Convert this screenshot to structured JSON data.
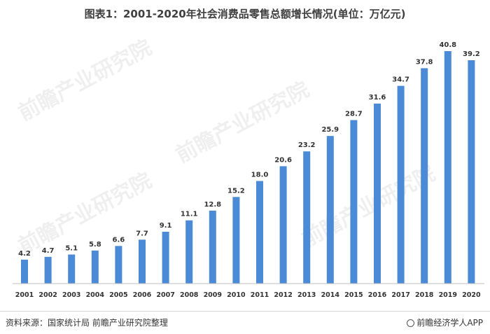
{
  "watermark": "前瞻产业研究院",
  "chart_data": {
    "type": "bar",
    "title": "图表1：2001-2020年社会消费品零售总额增长情况(单位：万亿元)",
    "xlabel": "",
    "ylabel": "",
    "unit": "万亿元",
    "categories": [
      "2001",
      "2002",
      "2003",
      "2004",
      "2005",
      "2006",
      "2007",
      "2008",
      "2009",
      "2010",
      "2011",
      "2012",
      "2013",
      "2014",
      "2015",
      "2016",
      "2017",
      "2018",
      "2019",
      "2020"
    ],
    "values": [
      4.2,
      4.7,
      5.1,
      5.8,
      6.6,
      7.7,
      9.1,
      11.1,
      12.8,
      15.2,
      18.0,
      20.6,
      23.2,
      25.9,
      28.7,
      31.6,
      34.7,
      37.8,
      40.8,
      39.2
    ],
    "value_labels": [
      "4.2",
      "4.7",
      "5.1",
      "5.8",
      "6.6",
      "7.7",
      "9.1",
      "11.1",
      "12.8",
      "15.2",
      "18.0",
      "20.6",
      "23.2",
      "25.9",
      "28.7",
      "31.6",
      "34.7",
      "37.8",
      "40.8",
      "39.2"
    ],
    "ylim": [
      0,
      40.8
    ],
    "grid": false,
    "colors": {
      "bar": "#4a8ad6",
      "axis": "#bfbfbf"
    }
  },
  "footer": {
    "source": "资料来源：国家统计局 前瞻产业研究院整理",
    "brand": "前瞻经济学人APP"
  }
}
